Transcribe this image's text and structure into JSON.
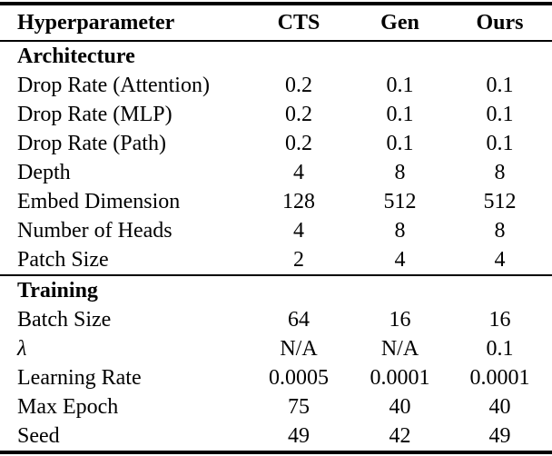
{
  "table": {
    "columns": {
      "label": "Hyperparameter",
      "cts": "CTS",
      "gen": "Gen",
      "ours": "Ours"
    },
    "sections": [
      {
        "title": "Architecture",
        "rows": [
          {
            "label": "Drop Rate (Attention)",
            "values": [
              "0.2",
              "0.1",
              "0.1"
            ]
          },
          {
            "label": "Drop Rate (MLP)",
            "values": [
              "0.2",
              "0.1",
              "0.1"
            ]
          },
          {
            "label": "Drop Rate (Path)",
            "values": [
              "0.2",
              "0.1",
              "0.1"
            ]
          },
          {
            "label": "Depth",
            "values": [
              "4",
              "8",
              "8"
            ]
          },
          {
            "label": "Embed Dimension",
            "values": [
              "128",
              "512",
              "512"
            ]
          },
          {
            "label": "Number of Heads",
            "values": [
              "4",
              "8",
              "8"
            ]
          },
          {
            "label": "Patch Size",
            "values": [
              "2",
              "4",
              "4"
            ]
          }
        ]
      },
      {
        "title": "Training",
        "rows": [
          {
            "label": "Batch Size",
            "values": [
              "64",
              "16",
              "16"
            ]
          },
          {
            "label": "λ",
            "values": [
              "N/A",
              "N/A",
              "0.1"
            ]
          },
          {
            "label": "Learning Rate",
            "values": [
              "0.0005",
              "0.0001",
              "0.0001"
            ]
          },
          {
            "label": "Max Epoch",
            "values": [
              "75",
              "40",
              "40"
            ]
          },
          {
            "label": "Seed",
            "values": [
              "49",
              "42",
              "49"
            ]
          }
        ]
      }
    ]
  },
  "colors": {
    "text": "#000000",
    "background": "#ffffff",
    "rule": "#000000"
  }
}
